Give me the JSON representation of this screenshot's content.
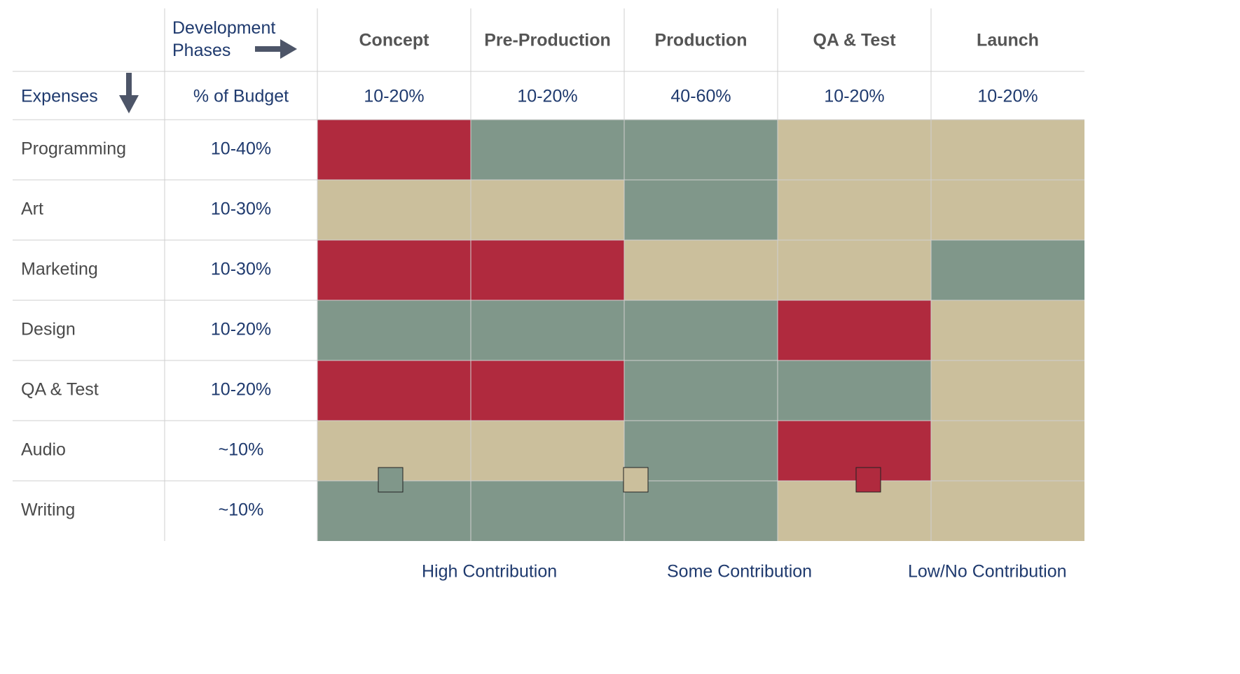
{
  "header": {
    "phase_label": "Development Phases",
    "expenses_label": "Expenses",
    "budget_label": "% of Budget"
  },
  "phases": [
    {
      "name": "Concept",
      "budget": "10-20%"
    },
    {
      "name": "Pre-Production",
      "budget": "10-20%"
    },
    {
      "name": "Production",
      "budget": "40-60%"
    },
    {
      "name": "QA & Test",
      "budget": "10-20%"
    },
    {
      "name": "Launch",
      "budget": "10-20%"
    }
  ],
  "rows": [
    {
      "name": "Programming",
      "budget": "10-40%",
      "cells": [
        "#b02a3e",
        "#80978a",
        "#80978a",
        "#cbbf9c",
        "#cbbf9c"
      ]
    },
    {
      "name": "Art",
      "budget": "10-30%",
      "cells": [
        "#cbbf9c",
        "#cbbf9c",
        "#80978a",
        "#cbbf9c",
        "#cbbf9c"
      ]
    },
    {
      "name": "Marketing",
      "budget": "10-30%",
      "cells": [
        "#b02a3e",
        "#b02a3e",
        "#cbbf9c",
        "#cbbf9c",
        "#80978a"
      ]
    },
    {
      "name": "Design",
      "budget": "10-20%",
      "cells": [
        "#80978a",
        "#80978a",
        "#80978a",
        "#b02a3e",
        "#cbbf9c"
      ]
    },
    {
      "name": "QA & Test",
      "budget": "10-20%",
      "cells": [
        "#b02a3e",
        "#b02a3e",
        "#80978a",
        "#80978a",
        "#cbbf9c"
      ]
    },
    {
      "name": "Audio",
      "budget": "~10%",
      "cells": [
        "#cbbf9c",
        "#cbbf9c",
        "#80978a",
        "#b02a3e",
        "#cbbf9c"
      ]
    },
    {
      "name": "Writing",
      "budget": "~10%",
      "cells": [
        "#80978a",
        "#80978a",
        "#80978a",
        "#cbbf9c",
        "#cbbf9c"
      ]
    }
  ],
  "legend": [
    {
      "label": "High Contribution",
      "color": "#80978a"
    },
    {
      "label": "Some Contribution",
      "color": "#cbbf9c"
    },
    {
      "label": "Low/No Contribution",
      "color": "#b02a3e"
    }
  ]
}
